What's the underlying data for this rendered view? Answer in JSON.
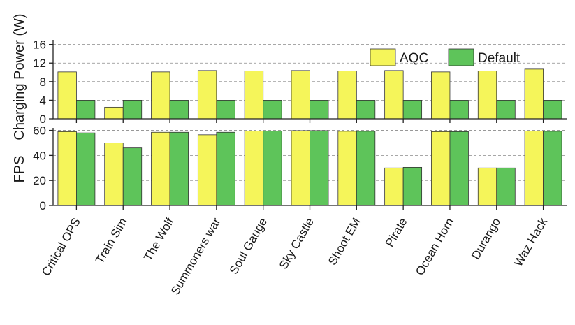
{
  "chart_data": [
    {
      "type": "bar",
      "ylabel": "Charging Power (W)",
      "ylim": [
        0,
        17
      ],
      "yticks": [
        0,
        4,
        8,
        12,
        16
      ],
      "grid": true,
      "legend_position": "top-right",
      "categories": [
        "Critical OPS",
        "Train Sim",
        "The Wolf",
        "Summoners war",
        "Soul Gauge",
        "Sky Castle",
        "Shoot EM",
        "Pirate",
        "Ocean Horn",
        "Durango",
        "Waz Hack"
      ],
      "series": [
        {
          "name": "AQC",
          "color": "#f5f55a",
          "values": [
            10.1,
            2.5,
            10.1,
            10.4,
            10.3,
            10.4,
            10.3,
            10.4,
            10.1,
            10.3,
            10.7
          ]
        },
        {
          "name": "Default",
          "color": "#5ec45a",
          "values": [
            4.0,
            4.0,
            4.0,
            4.0,
            4.0,
            4.0,
            4.0,
            4.0,
            4.0,
            4.0,
            4.0
          ]
        }
      ]
    },
    {
      "type": "bar",
      "ylabel": "FPS",
      "ylim": [
        0,
        62
      ],
      "yticks": [
        0,
        20,
        40,
        60
      ],
      "grid": true,
      "categories": [
        "Critical OPS",
        "Train Sim",
        "The Wolf",
        "Summoners war",
        "Soul Gauge",
        "Sky Castle",
        "Shoot EM",
        "Pirate",
        "Ocean Horn",
        "Durango",
        "Waz Hack"
      ],
      "series": [
        {
          "name": "AQC",
          "color": "#f5f55a",
          "values": [
            59,
            50,
            58.5,
            56.5,
            59.5,
            59.8,
            59.3,
            30,
            59,
            30,
            59.5
          ]
        },
        {
          "name": "Default",
          "color": "#5ec45a",
          "values": [
            58,
            46,
            58.5,
            58.5,
            59.5,
            59.8,
            59.3,
            30.5,
            59,
            30,
            59.3
          ]
        }
      ]
    }
  ]
}
